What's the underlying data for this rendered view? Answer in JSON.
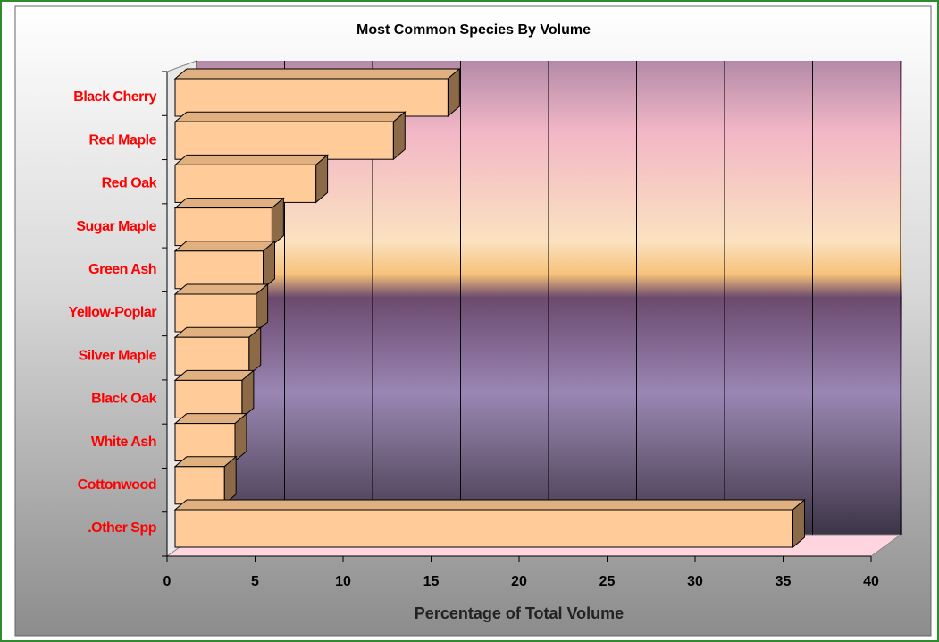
{
  "chart_data": {
    "type": "bar",
    "orientation": "horizontal",
    "title": "Most Common Species By Volume",
    "x_label": "Percentage of Total Volume",
    "categories": [
      "Black Cherry",
      "Red Maple",
      "Red Oak",
      "Sugar Maple",
      "Green Ash",
      "Yellow-Poplar",
      "Silver Maple",
      "Black Oak",
      "White Ash",
      "Cottonwood",
      ".Other Spp"
    ],
    "values": [
      15.5,
      12.4,
      8.0,
      5.5,
      5.0,
      4.6,
      4.2,
      3.8,
      3.4,
      2.8,
      35.1
    ],
    "color": "#ffcc99",
    "xlim": [
      0,
      40
    ],
    "xticks": [
      0,
      5,
      10,
      15,
      20,
      25,
      30,
      35,
      40
    ],
    "grid": true
  }
}
